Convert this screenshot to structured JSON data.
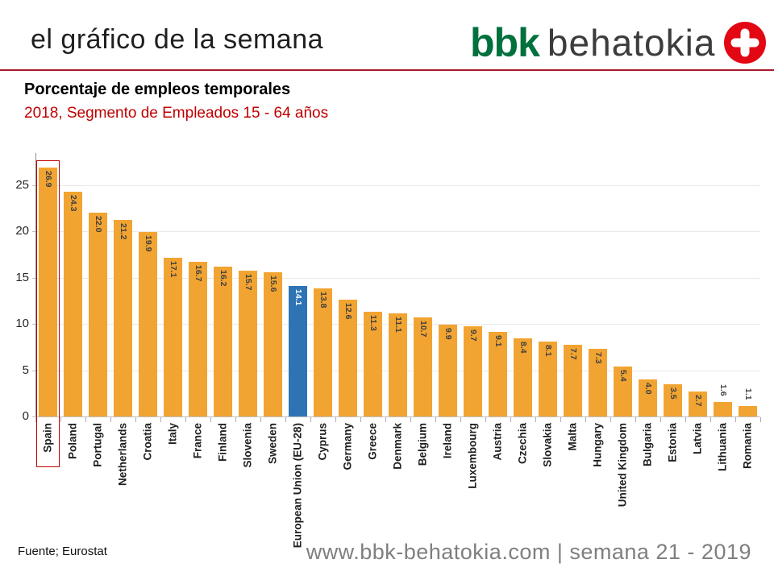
{
  "header": {
    "title": "el gráfico de la semana",
    "logo": {
      "bbk": "bbk",
      "behatokia": "behatokia"
    }
  },
  "chart_header": {
    "title": "Porcentaje de empleos temporales",
    "subtitle": "2018, Segmento de Empleados 15 - 64 años"
  },
  "footer": {
    "source": "Fuente; Eurostat",
    "website": "www.bbk-behatokia.com | semana 21 - 2019"
  },
  "colors": {
    "bar_orange": "#f2a432",
    "bar_blue": "#2e74b5",
    "header_line_red": "#a6192e",
    "subtitle_red": "#c00000",
    "highlight_red": "#c00000",
    "logo_green": "#00703c",
    "logo_text_dark": "#3c3c3b",
    "logo_circle_red": "#e30613",
    "footer_gray": "#7f7f7f",
    "gridline_gray": "#e9e9e9",
    "value_label_dark": "#404040",
    "value_label_on_blue": "#ffffff"
  },
  "chart_data": {
    "type": "bar",
    "title": "Porcentaje de empleos temporales",
    "subtitle": "2018, Segmento de Empleados 15 - 64 años",
    "categories": [
      "Spain",
      "Poland",
      "Portugal",
      "Netherlands",
      "Croatia",
      "Italy",
      "France",
      "Finland",
      "Slovenia",
      "Sweden",
      "European Union (EU-28)",
      "Cyprus",
      "Germany",
      "Greece",
      "Denmark",
      "Belgium",
      "Ireland",
      "Luxembourg",
      "Austria",
      "Czechia",
      "Slovakia",
      "Malta",
      "Hungary",
      "United Kingdom",
      "Bulgaria",
      "Estonia",
      "Latvia",
      "Lithuania",
      "Romania"
    ],
    "values": [
      26.9,
      24.3,
      22.0,
      21.2,
      19.9,
      17.1,
      16.7,
      16.2,
      15.7,
      15.6,
      14.1,
      13.8,
      12.6,
      11.3,
      11.1,
      10.7,
      9.9,
      9.7,
      9.1,
      8.4,
      8.1,
      7.7,
      7.3,
      5.4,
      4.0,
      3.5,
      2.7,
      1.6,
      1.1
    ],
    "value_labels": [
      "26.9",
      "24.3",
      "22.0",
      "21.2",
      "19.9",
      "17.1",
      "16.7",
      "16.2",
      "15.7",
      "15.6",
      "14.1",
      "13.8",
      "12.6",
      "11.3",
      "11.1",
      "10.7",
      "9.9",
      "9.7",
      "9.1",
      "8.4",
      "8.1",
      "7.7",
      "7.3",
      "5.4",
      "4.0",
      "3.5",
      "2.7",
      "1.6",
      "1.1"
    ],
    "bar_color": "#f2a432",
    "special_bar": {
      "category": "European Union (EU-28)",
      "color": "#2e74b5",
      "label_color": "#ffffff"
    },
    "highlight_category": "Spain",
    "highlight_color": "#c00000",
    "xlabel": "",
    "ylabel": "",
    "ylim": [
      0,
      28
    ],
    "yticks": [
      0,
      5,
      10,
      15,
      20,
      25
    ],
    "grid": true,
    "legend": false,
    "source": "Fuente; Eurostat"
  }
}
